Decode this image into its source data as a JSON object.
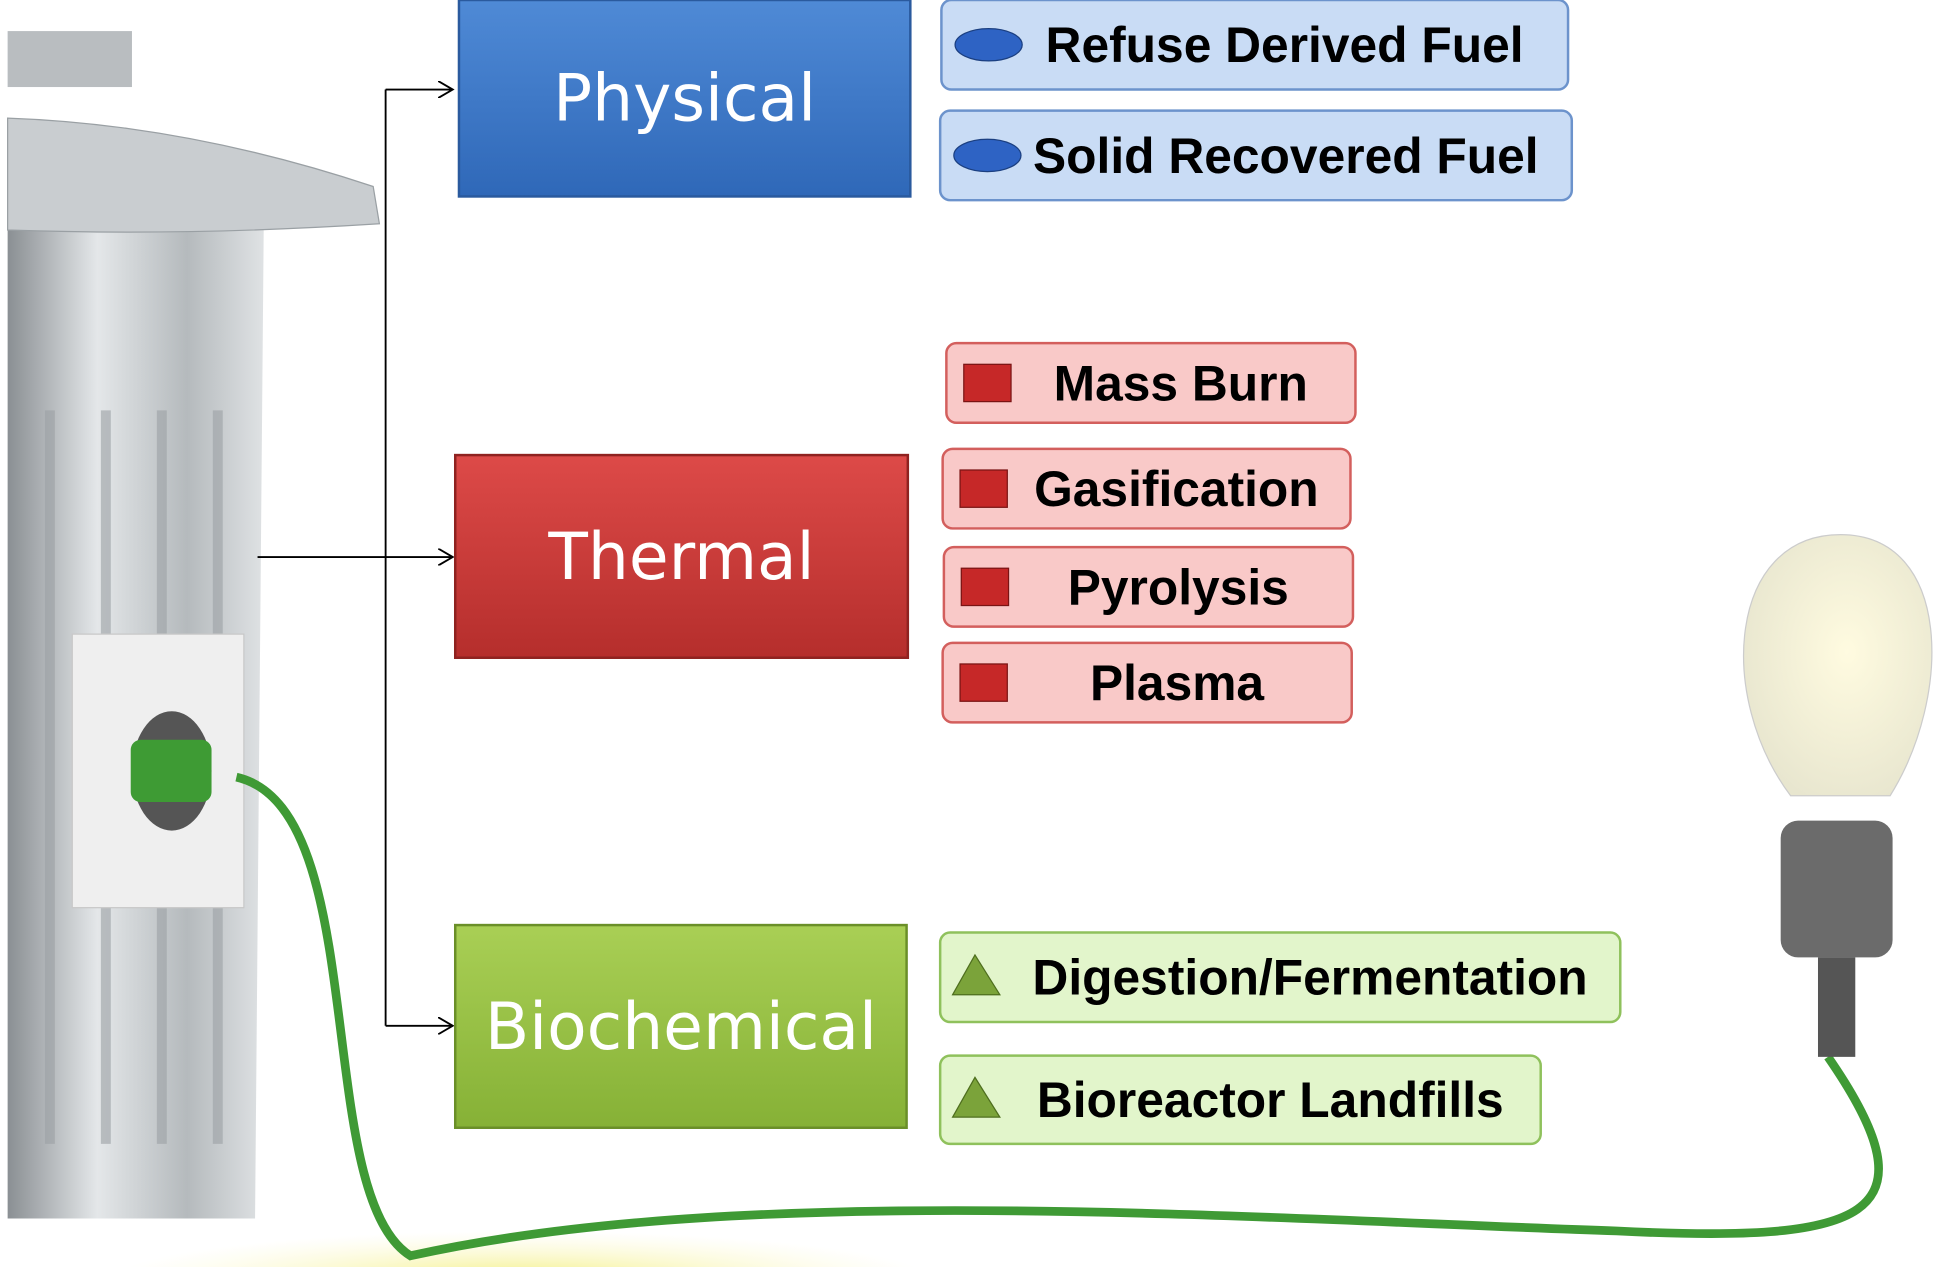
{
  "categories": [
    {
      "label": "Physical",
      "items": [
        "Refuse Derived Fuel",
        "Solid Recovered Fuel"
      ]
    },
    {
      "label": "Thermal",
      "items": [
        "Mass Burn",
        "Gasification",
        "Pyrolysis",
        "Plasma"
      ]
    },
    {
      "label": "Biochemical",
      "items": [
        "Digestion/Fermentation",
        "Bioreactor Landfills"
      ]
    }
  ]
}
